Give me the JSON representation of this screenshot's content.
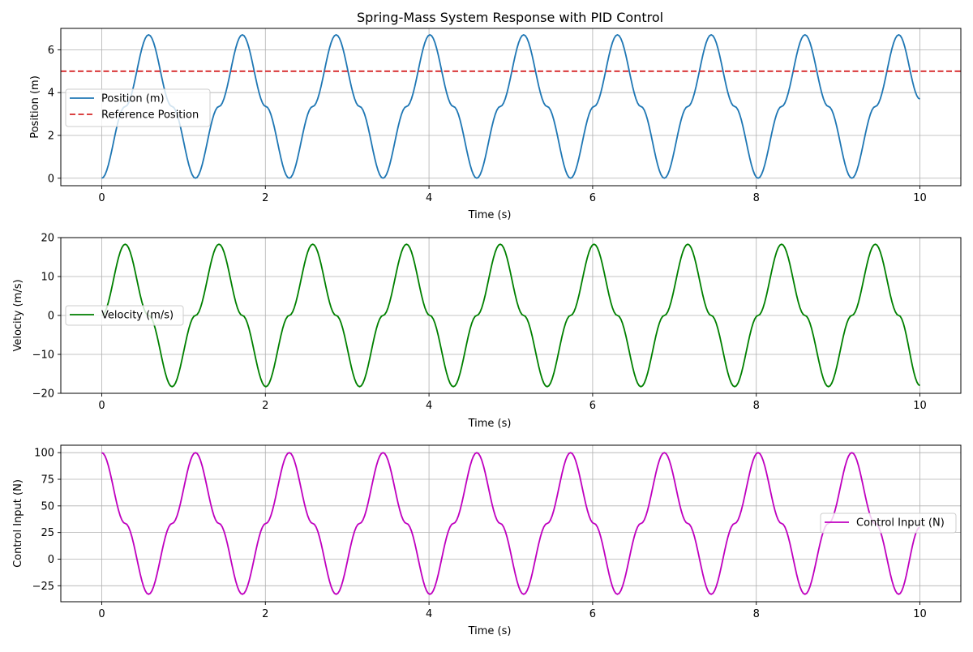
{
  "figure": {
    "title": "Spring-Mass System Response with PID Control"
  },
  "chart_data": [
    {
      "type": "line",
      "title": "Spring-Mass System Response with PID Control",
      "xlabel": "Time (s)",
      "ylabel": "Position (m)",
      "xlim": [
        -0.5,
        10.5
      ],
      "ylim": [
        -0.35,
        7.0
      ],
      "xticks": [
        0,
        2,
        4,
        6,
        8,
        10
      ],
      "yticks": [
        0,
        2,
        4,
        6
      ],
      "grid": true,
      "legend_position": "center-left",
      "series": [
        {
          "name": "Position (m)",
          "color": "#1f77b4",
          "style": "solid",
          "x": [
            0.0,
            0.287,
            0.573,
            0.86,
            1.146,
            1.433,
            1.719,
            2.006,
            2.292,
            2.579,
            2.865,
            3.152,
            3.438,
            3.725,
            4.011,
            4.298,
            4.584,
            4.871,
            5.157,
            5.444,
            5.73,
            6.017,
            6.303,
            6.59,
            6.876,
            7.163,
            7.449,
            7.736,
            8.022,
            8.309,
            8.595,
            8.882,
            9.168,
            9.455,
            9.741,
            10.0
          ],
          "y": [
            0.0,
            3.35,
            6.7,
            3.35,
            0.0,
            3.35,
            6.7,
            3.35,
            0.0,
            3.35,
            6.7,
            3.35,
            0.0,
            3.35,
            6.7,
            3.35,
            0.0,
            3.35,
            6.7,
            3.35,
            0.0,
            3.35,
            6.7,
            3.35,
            0.0,
            3.35,
            6.7,
            3.35,
            0.0,
            3.35,
            6.7,
            3.35,
            0.0,
            3.35,
            6.7,
            3.7
          ]
        },
        {
          "name": "Reference Position",
          "color": "#d62728",
          "style": "dashed",
          "x": [
            -0.5,
            10.5
          ],
          "y": [
            5,
            5
          ]
        }
      ]
    },
    {
      "type": "line",
      "title": "",
      "xlabel": "Time (s)",
      "ylabel": "Velocity (m/s)",
      "xlim": [
        -0.5,
        10.5
      ],
      "ylim": [
        -20,
        20
      ],
      "xticks": [
        0,
        2,
        4,
        6,
        8,
        10
      ],
      "yticks": [
        -20,
        -10,
        0,
        10,
        20
      ],
      "grid": true,
      "legend_position": "center-left",
      "series": [
        {
          "name": "Velocity (m/s)",
          "color": "#008000",
          "style": "solid",
          "x": [
            0.0,
            0.287,
            0.573,
            0.86,
            1.146,
            1.433,
            1.719,
            2.006,
            2.292,
            2.579,
            2.865,
            3.152,
            3.438,
            3.725,
            4.011,
            4.298,
            4.584,
            4.871,
            5.157,
            5.444,
            5.73,
            6.017,
            6.303,
            6.59,
            6.876,
            7.163,
            7.449,
            7.736,
            8.022,
            8.309,
            8.595,
            8.882,
            9.168,
            9.455,
            9.741,
            10.0
          ],
          "y": [
            0.0,
            18.3,
            0.0,
            -18.3,
            0.0,
            18.3,
            0.0,
            -18.3,
            0.0,
            18.3,
            0.0,
            -18.3,
            0.0,
            18.3,
            0.0,
            -18.3,
            0.0,
            18.3,
            0.0,
            -18.3,
            0.0,
            18.3,
            0.0,
            -18.3,
            0.0,
            18.3,
            0.0,
            -18.3,
            0.0,
            18.3,
            0.0,
            -18.3,
            0.0,
            18.3,
            0.0,
            -18.0
          ]
        }
      ]
    },
    {
      "type": "line",
      "title": "",
      "xlabel": "Time (s)",
      "ylabel": "Control Input (N)",
      "xlim": [
        -0.5,
        10.5
      ],
      "ylim": [
        -40,
        107
      ],
      "xticks": [
        0,
        2,
        4,
        6,
        8,
        10
      ],
      "yticks": [
        -25,
        0,
        25,
        50,
        75,
        100
      ],
      "grid": true,
      "legend_position": "center-right",
      "series": [
        {
          "name": "Control Input (N)",
          "color": "#bf00bf",
          "style": "solid",
          "x": [
            0.0,
            0.287,
            0.573,
            0.86,
            1.146,
            1.433,
            1.719,
            2.006,
            2.292,
            2.579,
            2.865,
            3.152,
            3.438,
            3.725,
            4.011,
            4.298,
            4.584,
            4.871,
            5.157,
            5.444,
            5.73,
            6.017,
            6.303,
            6.59,
            6.876,
            7.163,
            7.449,
            7.736,
            8.022,
            8.309,
            8.595,
            8.882,
            9.168,
            9.455,
            9.741,
            10.0
          ],
          "y": [
            100,
            33.5,
            -33,
            33.5,
            100,
            33.5,
            -33,
            33.5,
            100,
            33.5,
            -33,
            33.5,
            100,
            33.5,
            -33,
            33.5,
            100,
            33.5,
            -33,
            33.5,
            100,
            33.5,
            -33,
            33.5,
            100,
            33.5,
            -33,
            33.5,
            100,
            33.5,
            -33,
            33.5,
            100,
            33.5,
            -33,
            30
          ]
        }
      ]
    }
  ]
}
